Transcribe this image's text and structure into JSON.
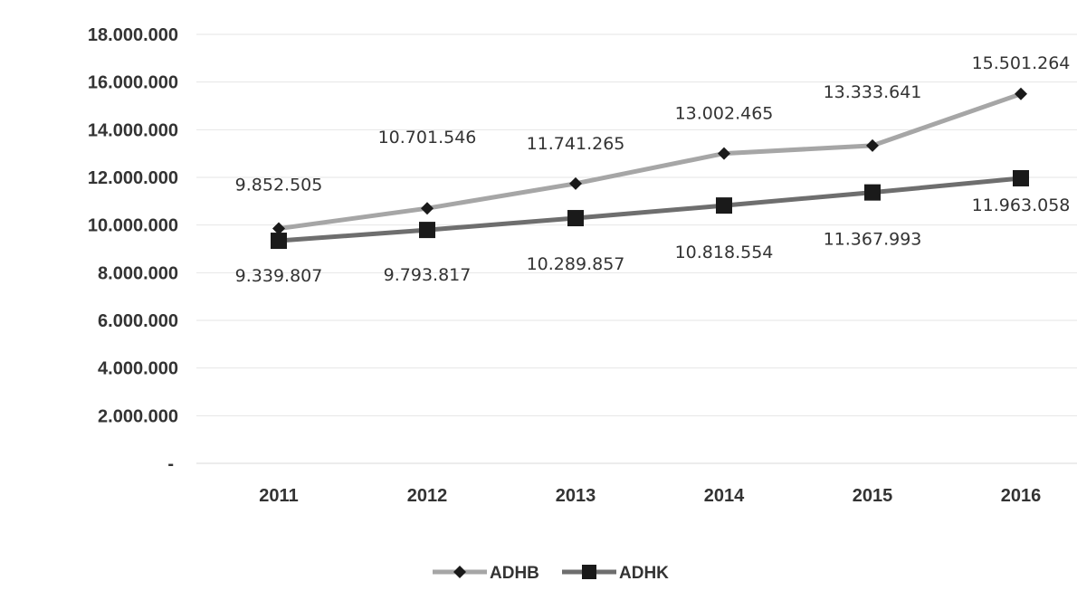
{
  "chart_data": {
    "type": "line",
    "title": "",
    "xlabel": "",
    "ylabel": "",
    "categories": [
      "2011",
      "2012",
      "2013",
      "2014",
      "2015",
      "2016"
    ],
    "ylim": [
      0,
      18000000
    ],
    "y_ticks": [
      0,
      2000000,
      4000000,
      6000000,
      8000000,
      10000000,
      12000000,
      14000000,
      16000000,
      18000000
    ],
    "y_tick_labels": [
      "-",
      "2.000.000",
      "4.000.000",
      "6.000.000",
      "8.000.000",
      "10.000.000",
      "12.000.000",
      "14.000.000",
      "16.000.000",
      "18.000.000"
    ],
    "grid": true,
    "legend_position": "bottom",
    "series": [
      {
        "name": "ADHB",
        "marker": "diamond",
        "color": "#a6a6a6",
        "values": [
          9852505,
          10701546,
          11741265,
          13002465,
          13333641,
          15501264
        ],
        "labels": [
          "9.852.505",
          "10.701.546",
          "11.741.265",
          "13.002.465",
          "13.333.641",
          "15.501.264"
        ]
      },
      {
        "name": "ADHK",
        "marker": "square",
        "color": "#6e6e6e",
        "values": [
          9339807,
          9793817,
          10289857,
          10818554,
          11367993,
          11963058
        ],
        "labels": [
          "9.339.807",
          "9.793.817",
          "10.289.857",
          "10.818.554",
          "11.367.993",
          "11.963.058"
        ]
      }
    ]
  }
}
